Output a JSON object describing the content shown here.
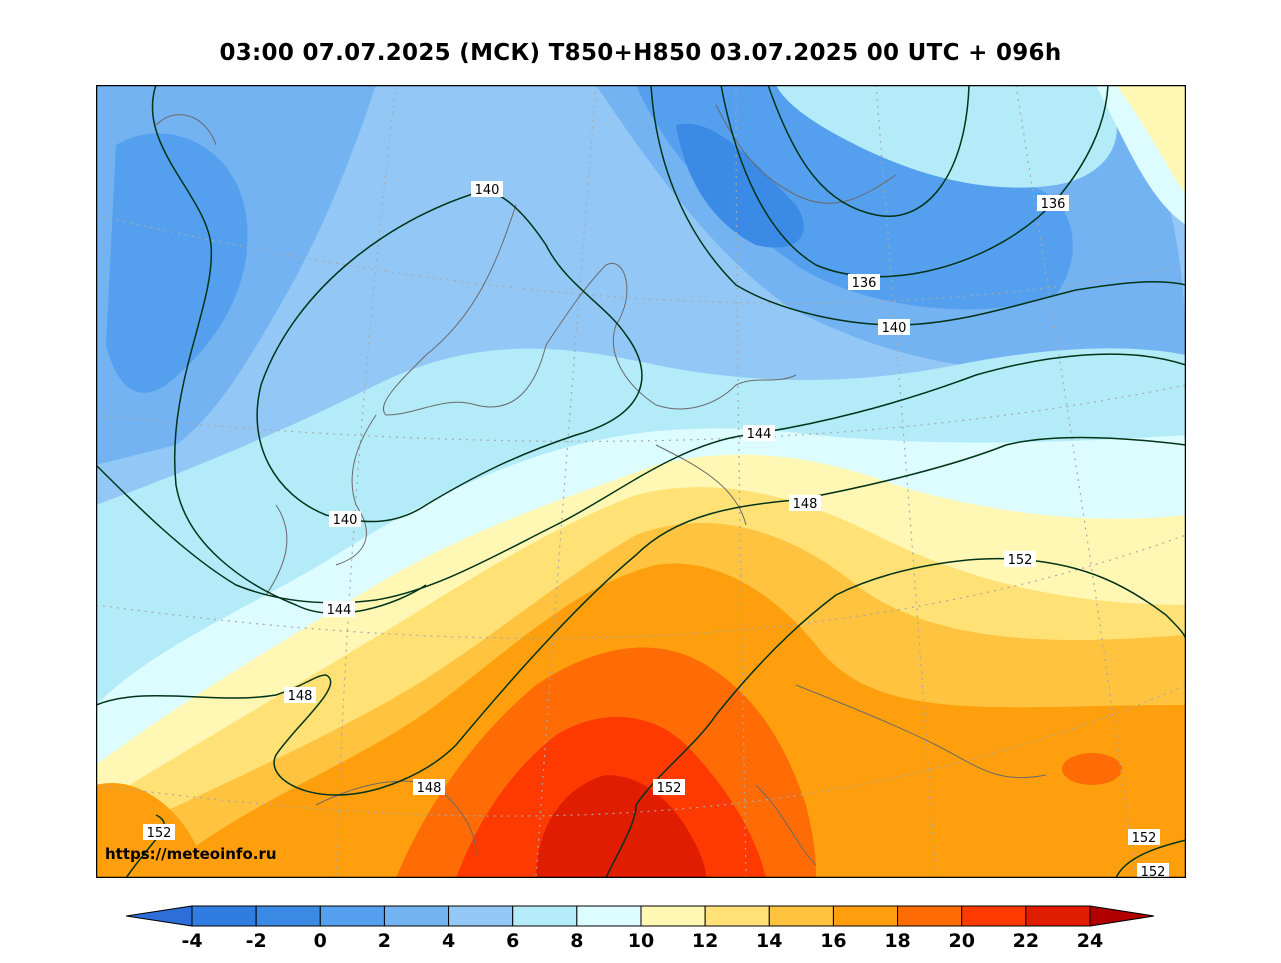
{
  "title": "03:00 07.07.2025 (МСК) T850+H850 03.07.2025 00 UTC + 096h",
  "source_url": "https://meteoinfo.ru",
  "colorbar": {
    "ticks": [
      "-4",
      "-2",
      "0",
      "2",
      "4",
      "6",
      "8",
      "10",
      "12",
      "14",
      "16",
      "18",
      "20",
      "22",
      "24"
    ],
    "under_color": "#2c6fd8",
    "over_color": "#b20000",
    "colors": [
      "#2f7de1",
      "#3b8be6",
      "#55a0ee",
      "#74b3f2",
      "#93c8f6",
      "#b3ebf9",
      "#dcfcff",
      "#fff7b3",
      "#ffe176",
      "#ffc33f",
      "#ff9f0e",
      "#ff6c05",
      "#ff3a00",
      "#e11d00"
    ]
  },
  "contour_labels": [
    {
      "text": "140"
    },
    {
      "text": "136"
    },
    {
      "text": "136"
    },
    {
      "text": "140"
    },
    {
      "text": "144"
    },
    {
      "text": "140"
    },
    {
      "text": "148"
    },
    {
      "text": "144"
    },
    {
      "text": "152"
    },
    {
      "text": "148"
    },
    {
      "text": "148"
    },
    {
      "text": "152"
    },
    {
      "text": "152"
    },
    {
      "text": "152"
    },
    {
      "text": "152"
    }
  ]
}
